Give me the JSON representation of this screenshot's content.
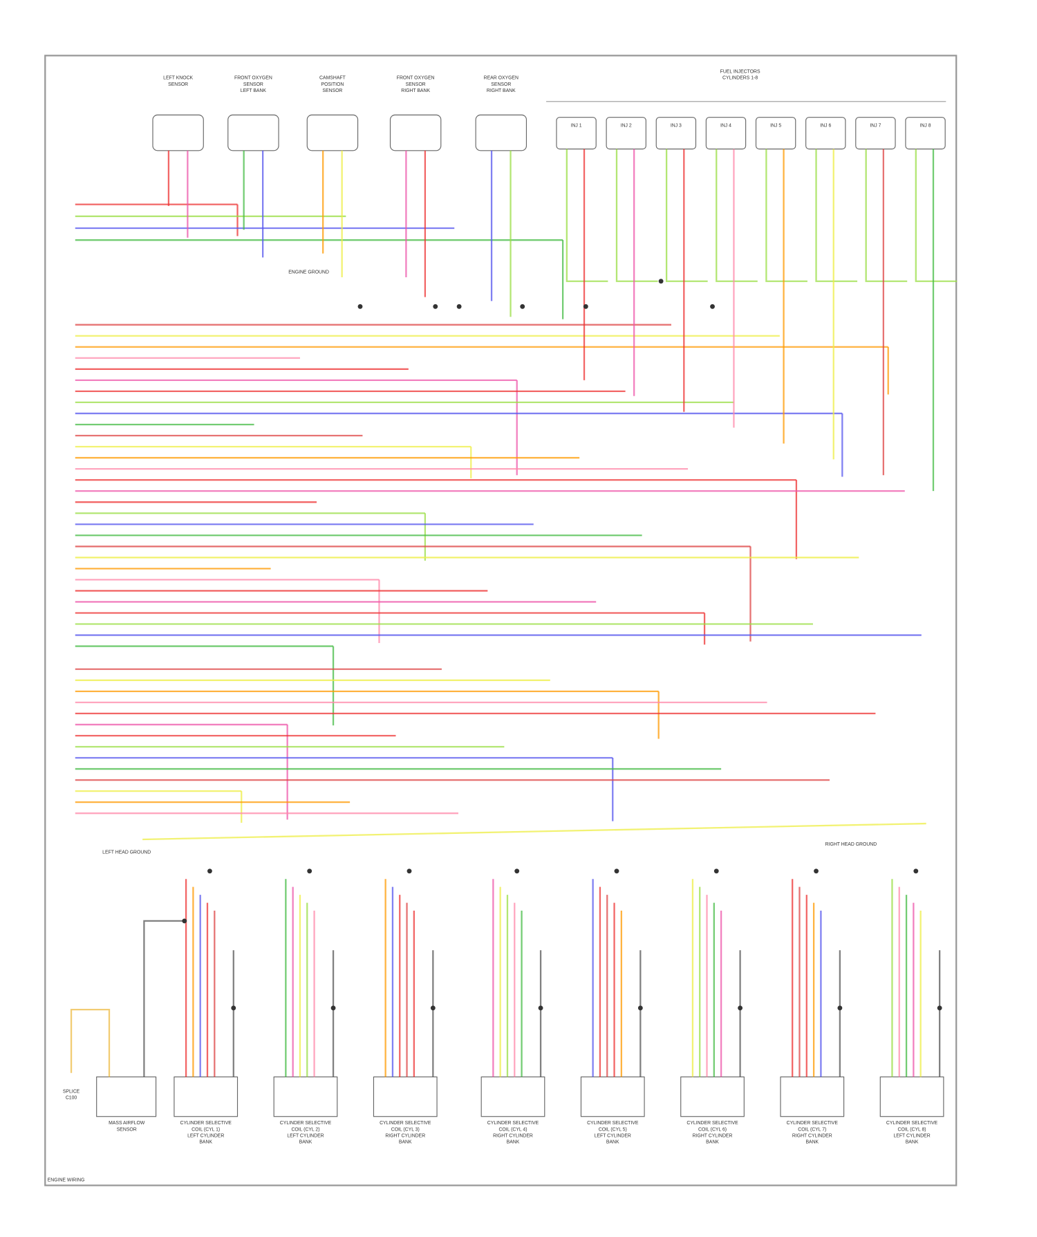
{
  "diagram": {
    "top_components": [
      {
        "lines": [
          "LEFT KNOCK",
          "SENSOR"
        ]
      },
      {
        "lines": [
          "FRONT OXYGEN",
          "SENSOR",
          "LEFT BANK"
        ]
      },
      {
        "lines": [
          "CAMSHAFT",
          "POSITION",
          "SENSOR"
        ]
      },
      {
        "lines": [
          "FRONT OXYGEN",
          "SENSOR",
          "RIGHT BANK"
        ]
      },
      {
        "lines": [
          "REAR OXYGEN",
          "SENSOR",
          "RIGHT BANK"
        ]
      }
    ],
    "injector_header": [
      "FUEL INJECTORS",
      "CYLINDERS 1-8"
    ],
    "injectors": [
      "INJ 1",
      "INJ 2",
      "INJ 3",
      "INJ 4",
      "INJ 5",
      "INJ 6",
      "INJ 7",
      "INJ 8"
    ],
    "ground_labels": [
      "ENGINE GROUND",
      "LEFT HEAD GROUND",
      "RIGHT HEAD GROUND"
    ],
    "left_box": {
      "lines": [
        "MASS AIRFLOW",
        "SENSOR"
      ]
    },
    "left_box_note": [
      "SPLICE",
      "C100"
    ],
    "coils": [
      {
        "lines": [
          "CYLINDER SELECTIVE",
          "COIL (CYL 1)",
          "LEFT CYLINDER",
          "BANK"
        ]
      },
      {
        "lines": [
          "CYLINDER SELECTIVE",
          "COIL (CYL 2)",
          "LEFT CYLINDER",
          "BANK"
        ]
      },
      {
        "lines": [
          "CYLINDER SELECTIVE",
          "COIL (CYL 3)",
          "RIGHT CYLINDER",
          "BANK"
        ]
      },
      {
        "lines": [
          "CYLINDER SELECTIVE",
          "COIL (CYL 4)",
          "RIGHT CYLINDER",
          "BANK"
        ]
      },
      {
        "lines": [
          "CYLINDER SELECTIVE",
          "COIL (CYL 5)",
          "LEFT CYLINDER",
          "BANK"
        ]
      },
      {
        "lines": [
          "CYLINDER SELECTIVE",
          "COIL (CYL 6)",
          "RIGHT CYLINDER",
          "BANK"
        ]
      },
      {
        "lines": [
          "CYLINDER SELECTIVE",
          "COIL (CYL 7)",
          "RIGHT CYLINDER",
          "BANK"
        ]
      },
      {
        "lines": [
          "CYLINDER SELECTIVE",
          "COIL (CYL 8)",
          "LEFT CYLINDER",
          "BANK"
        ]
      }
    ],
    "footer": "ENGINE WIRING"
  }
}
